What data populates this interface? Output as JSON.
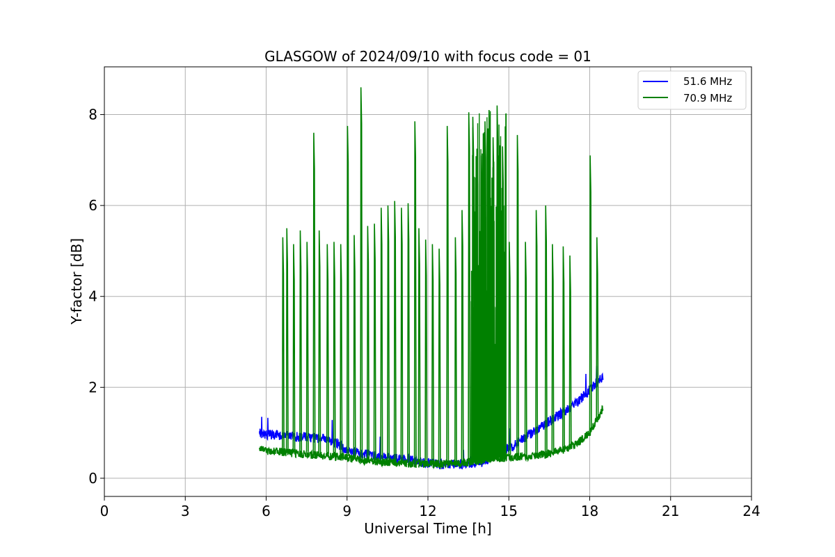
{
  "chart_data": {
    "type": "line",
    "title": "GLASGOW of 2024/09/10 with focus code = 01",
    "xlabel": "Universal Time [h]",
    "ylabel": "Y-factor [dB]",
    "xlim": [
      0,
      24
    ],
    "ylim": [
      -0.4,
      9.05
    ],
    "x_ticks": [
      0,
      3,
      6,
      9,
      12,
      15,
      18,
      21,
      24
    ],
    "y_ticks": [
      0,
      2,
      4,
      6,
      8
    ],
    "grid": true,
    "legend_position": "top-right",
    "series": [
      {
        "name": "51.6 MHz",
        "color": "#0000ff",
        "x": [
          5.75,
          6.0,
          6.5,
          7.0,
          7.5,
          8.0,
          8.5,
          9.0,
          9.5,
          10.0,
          10.5,
          11.0,
          11.5,
          12.0,
          12.5,
          13.0,
          13.5,
          13.8,
          14.0,
          14.3,
          14.6,
          15.0,
          15.5,
          16.0,
          16.5,
          17.0,
          17.5,
          18.0,
          18.5
        ],
        "y": [
          1.0,
          0.97,
          0.95,
          0.92,
          0.9,
          0.88,
          0.8,
          0.62,
          0.55,
          0.5,
          0.45,
          0.42,
          0.38,
          0.34,
          0.3,
          0.3,
          0.32,
          0.35,
          0.35,
          0.45,
          0.6,
          0.65,
          0.85,
          1.05,
          1.25,
          1.45,
          1.65,
          1.95,
          2.25
        ]
      },
      {
        "name": "70.9 MHz",
        "color": "#008000",
        "x": [
          5.75,
          6.0,
          6.5,
          7.0,
          7.5,
          8.0,
          8.5,
          9.0,
          9.5,
          10.0,
          10.5,
          11.0,
          11.5,
          12.0,
          12.5,
          13.0,
          13.5,
          14.0,
          14.5,
          15.0,
          15.5,
          16.0,
          16.5,
          17.0,
          17.5,
          18.0,
          18.5
        ],
        "y": [
          0.65,
          0.6,
          0.58,
          0.55,
          0.52,
          0.5,
          0.48,
          0.45,
          0.4,
          0.38,
          0.35,
          0.33,
          0.32,
          0.32,
          0.32,
          0.33,
          0.35,
          0.4,
          0.45,
          0.45,
          0.48,
          0.5,
          0.55,
          0.62,
          0.75,
          1.0,
          1.55
        ]
      }
    ],
    "spikes_70_9MHz": {
      "x": [
        6.6,
        6.75,
        7.0,
        7.25,
        7.5,
        7.75,
        7.95,
        8.25,
        8.5,
        8.75,
        9.0,
        9.25,
        9.5,
        9.75,
        10.0,
        10.25,
        10.5,
        10.75,
        11.0,
        11.25,
        11.5,
        11.65,
        11.9,
        12.15,
        12.4,
        12.7,
        13.0,
        13.25,
        13.5,
        13.65,
        13.8,
        13.95,
        14.1,
        14.25,
        14.4,
        14.55,
        14.75,
        15.0,
        15.3,
        15.6,
        16.0,
        16.35,
        16.6,
        17.0,
        17.25,
        18.0,
        18.25
      ],
      "y": [
        5.3,
        5.5,
        5.15,
        5.45,
        5.2,
        7.6,
        5.45,
        5.15,
        5.2,
        5.15,
        7.75,
        5.35,
        8.6,
        5.55,
        5.6,
        5.95,
        6.0,
        6.1,
        5.95,
        6.05,
        7.85,
        5.5,
        5.25,
        5.15,
        5.05,
        7.75,
        5.3,
        5.9,
        8.05,
        7.95,
        7.25,
        7.1,
        7.85,
        8.1,
        7.5,
        8.2,
        7.3,
        5.2,
        7.55,
        5.2,
        5.9,
        6.0,
        5.15,
        5.1,
        4.9,
        7.1,
        5.3
      ]
    }
  }
}
